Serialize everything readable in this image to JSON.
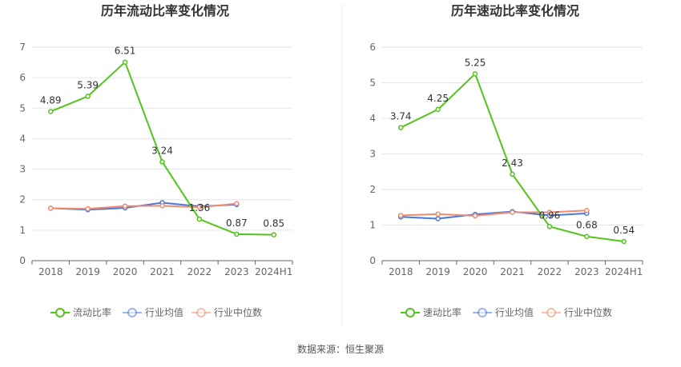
{
  "source_text": "数据来源：恒生聚源",
  "chart_data": [
    {
      "type": "line",
      "title": "历年流动比率变化情况",
      "categories": [
        "2018",
        "2019",
        "2020",
        "2021",
        "2022",
        "2023",
        "2024H1"
      ],
      "ylim": [
        0,
        7
      ],
      "yticks": [
        0,
        1,
        2,
        3,
        4,
        5,
        6,
        7
      ],
      "grid": true,
      "legend_position": "bottom",
      "series": [
        {
          "name": "流动比率",
          "color": "#52c41a",
          "values": [
            4.89,
            5.39,
            6.51,
            3.24,
            1.36,
            0.87,
            0.85
          ],
          "labels": [
            "4.89",
            "5.39",
            "6.51",
            "3.24",
            "1.36",
            "0.87",
            "0.85"
          ]
        },
        {
          "name": "行业均值",
          "color": "#4a78d8",
          "values": [
            1.72,
            1.67,
            1.73,
            1.9,
            1.78,
            1.84,
            null
          ]
        },
        {
          "name": "行业中位数",
          "color": "#f08c6e",
          "values": [
            1.72,
            1.7,
            1.79,
            1.8,
            1.75,
            1.87,
            null
          ]
        }
      ]
    },
    {
      "type": "line",
      "title": "历年速动比率变化情况",
      "categories": [
        "2018",
        "2019",
        "2020",
        "2021",
        "2022",
        "2023",
        "2024H1"
      ],
      "ylim": [
        0,
        6
      ],
      "yticks": [
        0,
        1,
        2,
        3,
        4,
        5,
        6
      ],
      "grid": true,
      "legend_position": "bottom",
      "series": [
        {
          "name": "速动比率",
          "color": "#52c41a",
          "values": [
            3.74,
            4.25,
            5.25,
            2.43,
            0.96,
            0.68,
            0.54
          ],
          "labels": [
            "3.74",
            "4.25",
            "5.25",
            "2.43",
            "0.96",
            "0.68",
            "0.54"
          ]
        },
        {
          "name": "行业均值",
          "color": "#4a78d8",
          "values": [
            1.23,
            1.18,
            1.3,
            1.38,
            1.27,
            1.33,
            null
          ]
        },
        {
          "name": "行业中位数",
          "color": "#f08c6e",
          "values": [
            1.27,
            1.31,
            1.26,
            1.36,
            1.36,
            1.41,
            null
          ]
        }
      ]
    }
  ]
}
